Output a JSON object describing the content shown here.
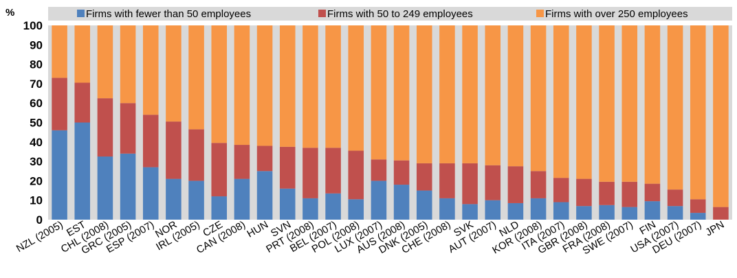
{
  "chart_data": {
    "type": "bar",
    "stacked": true,
    "title": "",
    "ylabel": "%",
    "ylim": [
      0,
      100
    ],
    "yticks": [
      0,
      10,
      20,
      30,
      40,
      50,
      60,
      70,
      80,
      90,
      100
    ],
    "grid": false,
    "legend_position": "top",
    "categories": [
      "NZL (2005)",
      "EST",
      "CHL (2008)",
      "GRC (2005)",
      "ESP (2007)",
      "NOR",
      "IRL (2005)",
      "CZE",
      "CAN (2008)",
      "HUN",
      "SVN",
      "PRT (2008)",
      "BEL (2007)",
      "POL (2008)",
      "LUX (2007)",
      "AUS (2008)",
      "DNK (2005)",
      "CHE (2008)",
      "SVK",
      "AUT (2007)",
      "NLD",
      "KOR (2008)",
      "ITA (2007)",
      "GBR (2008)",
      "FRA (2008)",
      "SWE (2007)",
      "FIN",
      "USA (2007)",
      "DEU (2007)",
      "JPN"
    ],
    "series": [
      {
        "name": "Firms with fewer than 50 employees",
        "color": "#4f81bd",
        "values": [
          46,
          50,
          32.5,
          34,
          27,
          21,
          20,
          12,
          21,
          25,
          16,
          11,
          13.5,
          10.5,
          20,
          18,
          15,
          11,
          8,
          10,
          8.5,
          11,
          9,
          7,
          7.5,
          6.5,
          9.5,
          7,
          3.5,
          0
        ]
      },
      {
        "name": "Firms with 50 to 249 employees",
        "color": "#c0504d",
        "values": [
          27,
          20.5,
          30,
          26,
          27,
          29.5,
          26.5,
          27.5,
          17.5,
          13,
          21.5,
          26,
          23.5,
          25,
          11,
          12.5,
          14,
          18,
          21,
          18,
          19,
          14,
          12.5,
          14,
          12,
          13,
          9,
          8.5,
          7,
          6.5
        ]
      },
      {
        "name": "Firms with over 250 employees",
        "color": "#f79646",
        "values": [
          27,
          29.5,
          37.5,
          40,
          46,
          49.5,
          53.5,
          60.5,
          61.5,
          62,
          62.5,
          63,
          63,
          64.5,
          69,
          69.5,
          71,
          71,
          71,
          72,
          72.5,
          75,
          78.5,
          79,
          80.5,
          80.5,
          81.5,
          84.5,
          89.5,
          93.5
        ]
      }
    ]
  }
}
